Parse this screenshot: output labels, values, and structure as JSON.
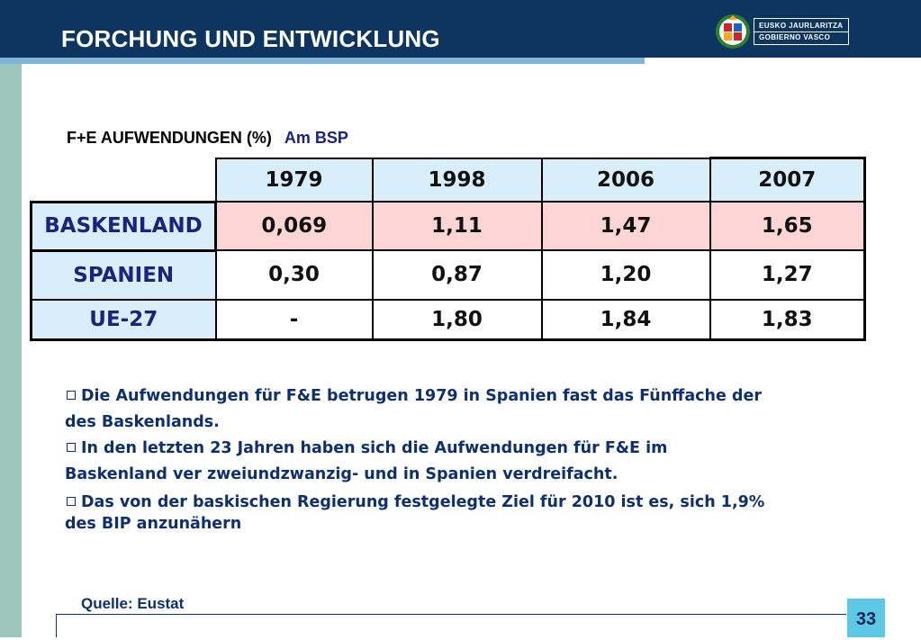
{
  "header": {
    "title": "FORCHUNG UND ENTWICKLUNG",
    "logo": {
      "line1": "EUSKO JAURLARITZA",
      "line2": "GOBIERNO VASCO",
      "seal_icon": "basque-government-seal-icon"
    },
    "colors": {
      "band": "#0d3560",
      "rule": "#7fb5d6",
      "sidebar": "#9fc6bb"
    }
  },
  "table": {
    "title_main": "F+E AUFWENDUNGEN (%)",
    "title_sub": "Am  BSP",
    "years": [
      "1979",
      "1998",
      "2006",
      "2007"
    ],
    "rows": [
      {
        "label": "BASKENLAND",
        "values": [
          "0,069",
          "1,11",
          "1,47",
          "1,65"
        ]
      },
      {
        "label": "SPANIEN",
        "values": [
          "0,30",
          "0,87",
          "1,20",
          "1,27"
        ]
      },
      {
        "label": "UE-27",
        "values": [
          "-",
          "1,80",
          "1,84",
          "1,83"
        ]
      }
    ],
    "colors": {
      "header_fill": "#d8eefa",
      "highlight_row_fill": "#fdd5d5"
    }
  },
  "bullets": [
    {
      "line1": "Die Aufwendungen für F&E betrugen 1979 in Spanien fast das Fünffache der",
      "line2": "des Baskenlands."
    },
    {
      "line1": "In den letzten 23 Jahren haben sich die Aufwendungen für F&E im",
      "line2": "Baskenland ver zweiundzwanzig-  und in Spanien verdreifacht."
    },
    {
      "line1": "Das von der baskischen Regierung festgelegte Ziel für 2010 ist es, sich 1,9%",
      "line2": "des BIP anzunähern"
    }
  ],
  "footer": {
    "source": "Quelle: Eustat",
    "page_number": "33"
  }
}
